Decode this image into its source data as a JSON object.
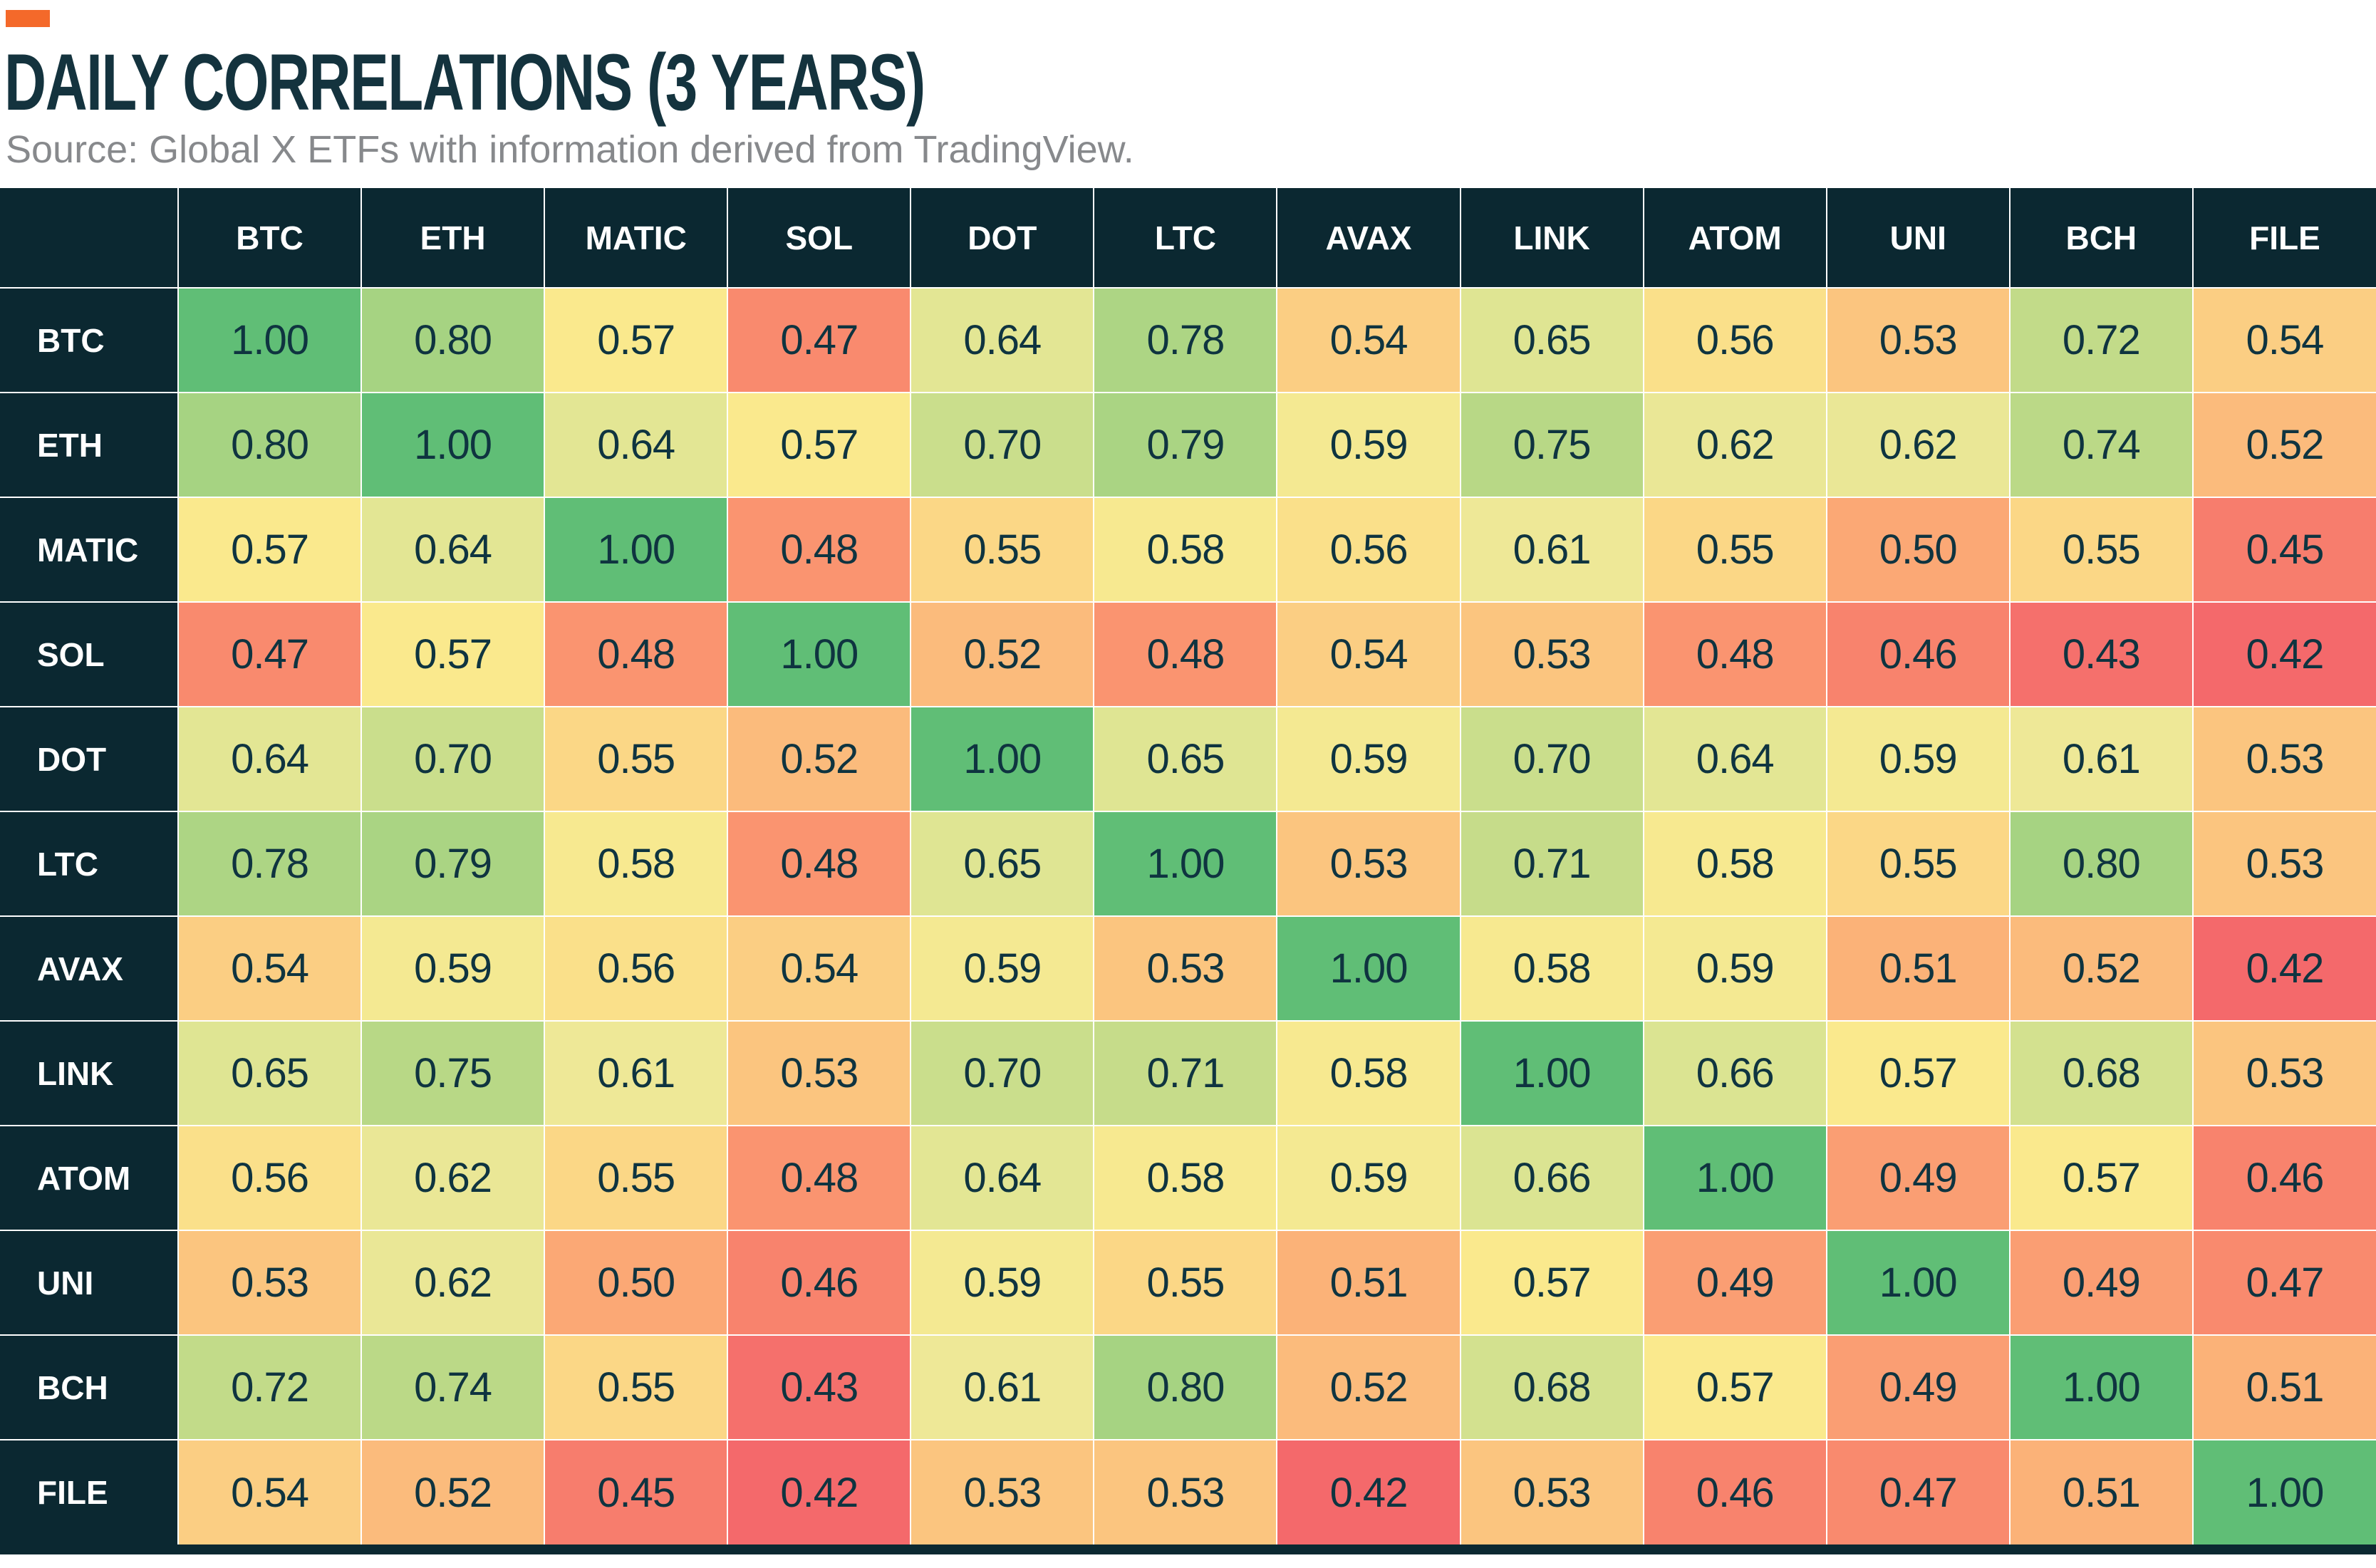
{
  "accent": {
    "color": "#f4692a"
  },
  "chart_data": {
    "type": "heatmap",
    "title": "DAILY CORRELATIONS (3 YEARS)",
    "source": "Source: Global X ETFs with information derived from TradingView.",
    "labels": [
      "BTC",
      "ETH",
      "MATIC",
      "SOL",
      "DOT",
      "LTC",
      "AVAX",
      "LINK",
      "ATOM",
      "UNI",
      "BCH",
      "FILE"
    ],
    "matrix": [
      [
        1.0,
        0.8,
        0.57,
        0.47,
        0.64,
        0.78,
        0.54,
        0.65,
        0.56,
        0.53,
        0.72,
        0.54
      ],
      [
        0.8,
        1.0,
        0.64,
        0.57,
        0.7,
        0.79,
        0.59,
        0.75,
        0.62,
        0.62,
        0.74,
        0.52
      ],
      [
        0.57,
        0.64,
        1.0,
        0.48,
        0.55,
        0.58,
        0.56,
        0.61,
        0.55,
        0.5,
        0.55,
        0.45
      ],
      [
        0.47,
        0.57,
        0.48,
        1.0,
        0.52,
        0.48,
        0.54,
        0.53,
        0.48,
        0.46,
        0.43,
        0.42
      ],
      [
        0.64,
        0.7,
        0.55,
        0.52,
        1.0,
        0.65,
        0.59,
        0.7,
        0.64,
        0.59,
        0.61,
        0.53
      ],
      [
        0.78,
        0.79,
        0.58,
        0.48,
        0.65,
        1.0,
        0.53,
        0.71,
        0.58,
        0.55,
        0.8,
        0.53
      ],
      [
        0.54,
        0.59,
        0.56,
        0.54,
        0.59,
        0.53,
        1.0,
        0.58,
        0.59,
        0.51,
        0.52,
        0.42
      ],
      [
        0.65,
        0.75,
        0.61,
        0.53,
        0.7,
        0.71,
        0.58,
        1.0,
        0.66,
        0.57,
        0.68,
        0.53
      ],
      [
        0.56,
        0.62,
        0.55,
        0.48,
        0.64,
        0.58,
        0.59,
        0.66,
        1.0,
        0.49,
        0.57,
        0.46
      ],
      [
        0.53,
        0.62,
        0.5,
        0.46,
        0.59,
        0.55,
        0.51,
        0.57,
        0.49,
        1.0,
        0.49,
        0.47
      ],
      [
        0.72,
        0.74,
        0.55,
        0.43,
        0.61,
        0.8,
        0.52,
        0.68,
        0.57,
        0.49,
        1.0,
        0.51
      ],
      [
        0.54,
        0.52,
        0.45,
        0.42,
        0.53,
        0.53,
        0.42,
        0.53,
        0.46,
        0.47,
        0.51,
        1.0
      ]
    ],
    "value_decimals": 2,
    "value_range": [
      0.42,
      1.0
    ],
    "grid": true,
    "legend": "none",
    "color_scale": {
      "stops": [
        [
          0.42,
          "#f4696b"
        ],
        [
          0.47,
          "#f98a6e"
        ],
        [
          0.5,
          "#fba875"
        ],
        [
          0.53,
          "#fbc57f"
        ],
        [
          0.57,
          "#fae98d"
        ],
        [
          0.61,
          "#eee897"
        ],
        [
          0.65,
          "#dfe593"
        ],
        [
          0.72,
          "#c2db89"
        ],
        [
          0.8,
          "#a6d382"
        ],
        [
          1.0,
          "#60be76"
        ]
      ]
    },
    "colors": {
      "header_bg": "#0b2831",
      "header_text": "#ffffff",
      "cell_text": "#0f3440",
      "grid_line": "rgba(255,255,255,0.55)",
      "title_text": "#14333e",
      "source_text": "#87898c"
    }
  }
}
